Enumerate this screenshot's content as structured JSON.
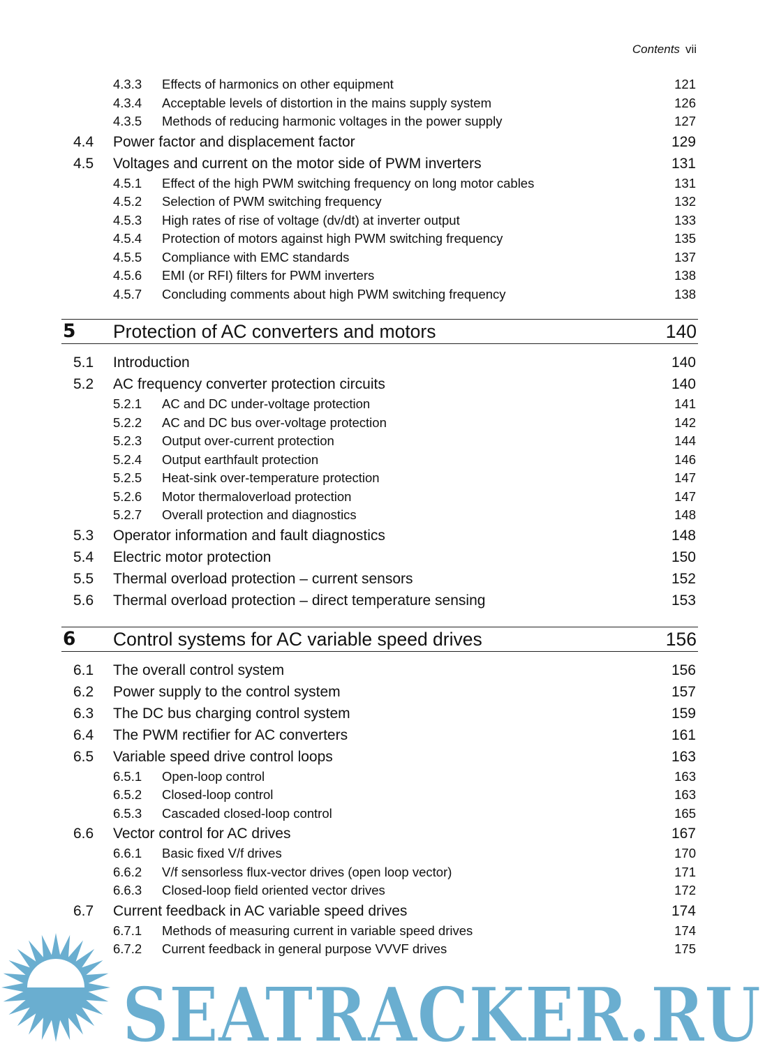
{
  "header": {
    "running_title": "Contents",
    "page_number": "vii"
  },
  "toc": [
    {
      "level": 3,
      "number": "4.3.3",
      "title": "Effects of harmonics on other equipment",
      "page": "121"
    },
    {
      "level": 3,
      "number": "4.3.4",
      "title": "Acceptable levels of distortion in the mains supply system",
      "page": "126"
    },
    {
      "level": 3,
      "number": "4.3.5",
      "title": "Methods of reducing harmonic voltages in the power supply",
      "page": "127"
    },
    {
      "level": 2,
      "number": "4.4",
      "title": "Power factor and displacement factor",
      "page": "129"
    },
    {
      "level": 2,
      "number": "4.5",
      "title": "Voltages and current on the motor side of PWM inverters",
      "page": "131"
    },
    {
      "level": 3,
      "number": "4.5.1",
      "title": "Effect of the high PWM switching frequency on long motor cables",
      "page": "131"
    },
    {
      "level": 3,
      "number": "4.5.2",
      "title": "Selection of PWM switching frequency",
      "page": "132"
    },
    {
      "level": 3,
      "number": "4.5.3",
      "title": "High rates of rise of voltage (dv/dt) at inverter output",
      "page": "133"
    },
    {
      "level": 3,
      "number": "4.5.4",
      "title": "Protection of motors against high PWM switching frequency",
      "page": "135"
    },
    {
      "level": 3,
      "number": "4.5.5",
      "title": "Compliance with EMC standards",
      "page": "137"
    },
    {
      "level": 3,
      "number": "4.5.6",
      "title": "EMI (or RFI) filters for PWM inverters",
      "page": "138"
    },
    {
      "level": 3,
      "number": "4.5.7",
      "title": "Concluding comments about high PWM switching frequency",
      "page": "138"
    },
    {
      "level": 1,
      "number": "5",
      "title": "Protection of AC converters and  motors",
      "page": "140"
    },
    {
      "level": 2,
      "number": "5.1",
      "title": "Introduction",
      "page": "140"
    },
    {
      "level": 2,
      "number": "5.2",
      "title": "AC frequency converter protection circuits",
      "page": "140"
    },
    {
      "level": 3,
      "number": "5.2.1",
      "title": "AC and DC under-voltage protection",
      "page": "141"
    },
    {
      "level": 3,
      "number": "5.2.2",
      "title": "AC and DC bus over-voltage protection",
      "page": "142"
    },
    {
      "level": 3,
      "number": "5.2.3",
      "title": "Output over-current protection",
      "page": "144"
    },
    {
      "level": 3,
      "number": "5.2.4",
      "title": "Output earthfault protection",
      "page": "146"
    },
    {
      "level": 3,
      "number": "5.2.5",
      "title": "Heat-sink over-temperature protection",
      "page": "147"
    },
    {
      "level": 3,
      "number": "5.2.6",
      "title": "Motor thermaloverload protection",
      "page": "147"
    },
    {
      "level": 3,
      "number": "5.2.7",
      "title": "Overall protection and diagnostics",
      "page": "148"
    },
    {
      "level": 2,
      "number": "5.3",
      "title": "Operator information and fault diagnostics",
      "page": "148"
    },
    {
      "level": 2,
      "number": "5.4",
      "title": "Electric motor protection",
      "page": "150"
    },
    {
      "level": 2,
      "number": "5.5",
      "title": "Thermal overload protection – current sensors",
      "page": "152"
    },
    {
      "level": 2,
      "number": "5.6",
      "title": "Thermal overload protection – direct temperature sensing",
      "page": "153"
    },
    {
      "level": 1,
      "number": "6",
      "title": "Control systems for AC variable speed drives",
      "page": "156"
    },
    {
      "level": 2,
      "number": "6.1",
      "title": "The overall control system",
      "page": "156"
    },
    {
      "level": 2,
      "number": "6.2",
      "title": "Power supply to the control system",
      "page": "157"
    },
    {
      "level": 2,
      "number": "6.3",
      "title": "The DC bus charging control system",
      "page": "159"
    },
    {
      "level": 2,
      "number": "6.4",
      "title": "The PWM rectifier for AC converters",
      "page": "161"
    },
    {
      "level": 2,
      "number": "6.5",
      "title": "Variable speed drive control loops",
      "page": "163"
    },
    {
      "level": 3,
      "number": "6.5.1",
      "title": "Open-loop control",
      "page": "163"
    },
    {
      "level": 3,
      "number": "6.5.2",
      "title": "Closed-loop control",
      "page": "163"
    },
    {
      "level": 3,
      "number": "6.5.3",
      "title": "Cascaded closed-loop control",
      "page": "165"
    },
    {
      "level": 2,
      "number": "6.6",
      "title": "Vector control for AC drives",
      "page": "167"
    },
    {
      "level": 3,
      "number": "6.6.1",
      "title": "Basic fixed V/f drives",
      "page": "170"
    },
    {
      "level": 3,
      "number": "6.6.2",
      "title": "V/f sensorless flux-vector drives (open loop vector)",
      "page": "171"
    },
    {
      "level": 3,
      "number": "6.6.3",
      "title": "Closed-loop field oriented vector drives",
      "page": "172"
    },
    {
      "level": 2,
      "number": "6.7",
      "title": "Current feedback in AC variable speed drives",
      "page": "174"
    },
    {
      "level": 3,
      "number": "6.7.1",
      "title": "Methods of measuring current in variable speed drives",
      "page": "174"
    },
    {
      "level": 3,
      "number": "6.7.2",
      "title": "Current feedback in general purpose VVVF drives",
      "page": "175"
    }
  ],
  "watermark": {
    "text": "SEATRACKER.RU",
    "color": "#6aaed0"
  }
}
